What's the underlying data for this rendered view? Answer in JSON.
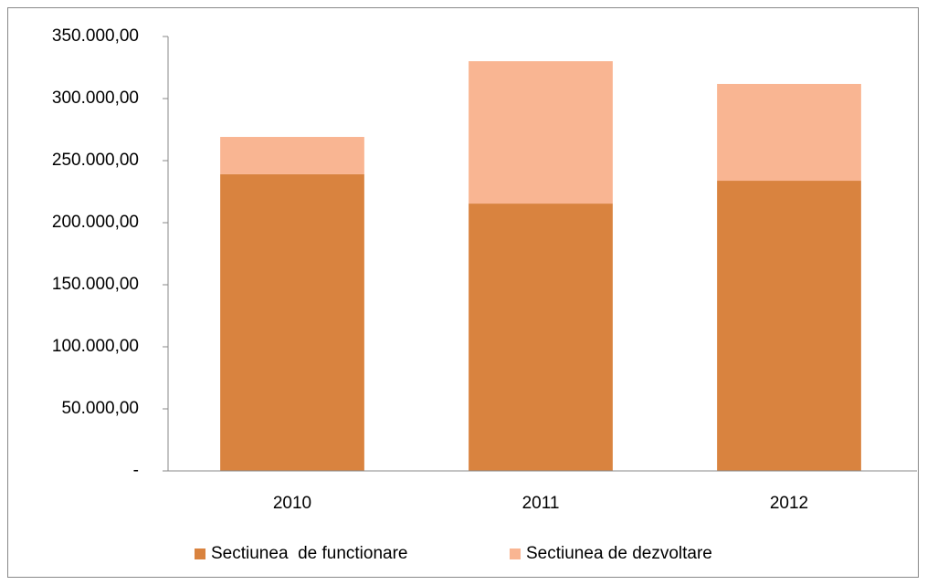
{
  "chart_data": {
    "type": "stacked_bar",
    "categories": [
      "2010",
      "2011",
      "2012"
    ],
    "series": [
      {
        "name": "Sectiunea  de functionare",
        "color": "#d9833f",
        "values": [
          239000,
          215400,
          233800
        ]
      },
      {
        "name": "Sectiunea de dezvoltare",
        "color": "#f9b592",
        "values": [
          30100,
          114700,
          78000
        ]
      }
    ],
    "ylim": [
      0,
      350000
    ],
    "yticks": [
      {
        "value": 0,
        "label": "-"
      },
      {
        "value": 50000,
        "label": "50.000,00"
      },
      {
        "value": 100000,
        "label": "100.000,00"
      },
      {
        "value": 150000,
        "label": "150.000,00"
      },
      {
        "value": 200000,
        "label": "200.000,00"
      },
      {
        "value": 250000,
        "label": "250.000,00"
      },
      {
        "value": 300000,
        "label": "300.000,00"
      },
      {
        "value": 350000,
        "label": "350.000,00"
      }
    ],
    "legend": "bottom"
  }
}
